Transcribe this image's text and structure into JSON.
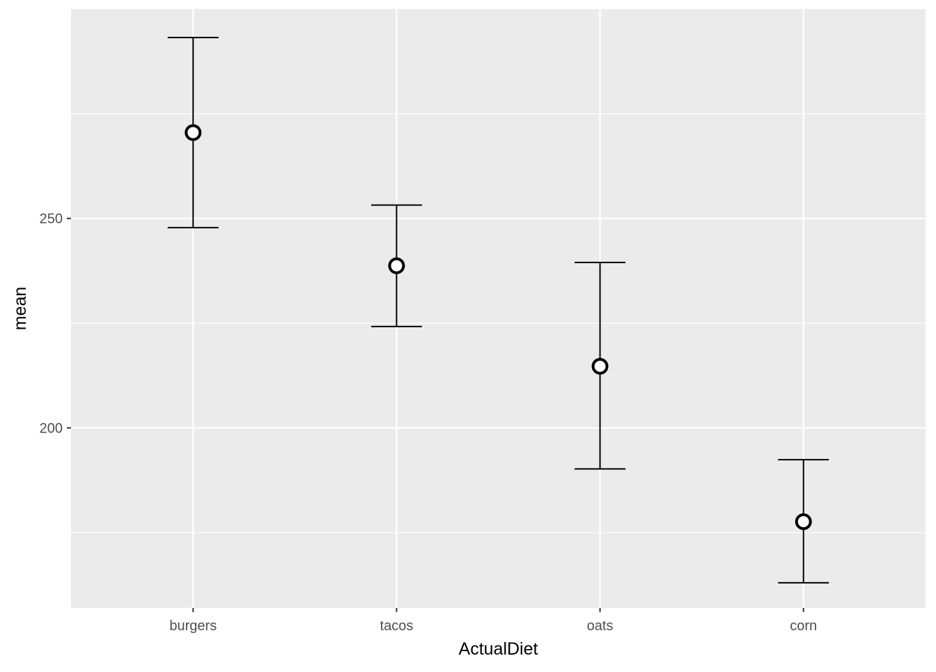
{
  "chart_data": {
    "type": "scatter",
    "subtype": "point-with-errorbars",
    "title": "",
    "xlabel": "ActualDiet",
    "ylabel": "mean",
    "categories": [
      "burgers",
      "tacos",
      "oats",
      "corn"
    ],
    "series": [
      {
        "values": [
          270.5,
          238.7,
          214.7,
          177.6
        ],
        "lower": [
          247.8,
          224.2,
          190.2,
          163.0
        ],
        "upper": [
          293.2,
          253.2,
          239.5,
          192.4
        ]
      }
    ],
    "ylim": [
      157,
      300
    ],
    "yticks": [
      200,
      250
    ],
    "yminor": [
      175,
      225,
      275
    ],
    "grid": true,
    "legend": "none",
    "colors": {
      "panel_background": "#ebebeb",
      "grid": "#ffffff",
      "errorbar": "#000000",
      "point_fill": "#ffffff",
      "point_stroke": "#000000",
      "tick_text": "#4d4d4d",
      "axis_title": "#000000",
      "tick_mark": "#333333"
    }
  }
}
